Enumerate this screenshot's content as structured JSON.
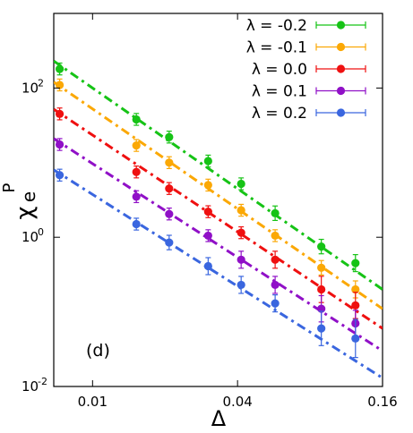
{
  "chart_data": {
    "type": "scatter",
    "annotation": "(d)",
    "xlabel": "Δ",
    "ylabel": {
      "base": "χ",
      "sub": "e",
      "sup": "P"
    },
    "xscale": "log",
    "yscale": "log",
    "xlim": [
      0.0069,
      0.16
    ],
    "ylim": [
      0.01,
      1000
    ],
    "xticks": [
      {
        "value": 0.01,
        "label": "0.01"
      },
      {
        "value": 0.04,
        "label": "0.04"
      },
      {
        "value": 0.16,
        "label": "0.16"
      }
    ],
    "yticks": [
      {
        "value": 0.01,
        "base": "10",
        "exp": "-2"
      },
      {
        "value": 1,
        "base": "10",
        "exp": "0"
      },
      {
        "value": 100,
        "base": "10",
        "exp": "2"
      }
    ],
    "legend_position": "top-right",
    "grid": false,
    "series": [
      {
        "name": "λ = -0.2",
        "color": "#16c316",
        "points": [
          [
            0.0073,
            180
          ],
          [
            0.0152,
            38
          ],
          [
            0.0208,
            22
          ],
          [
            0.0302,
            10.5
          ],
          [
            0.0414,
            5.2
          ],
          [
            0.0573,
            2.1
          ],
          [
            0.0891,
            0.75
          ],
          [
            0.1235,
            0.45
          ]
        ],
        "errors": [
          0.2,
          0.2,
          0.2,
          0.2,
          0.2,
          0.25,
          0.25,
          0.3
        ],
        "fit": [
          0.0069,
          230,
          0.16,
          0.2
        ]
      },
      {
        "name": "λ = -0.1",
        "color": "#fba805",
        "points": [
          [
            0.0073,
            110
          ],
          [
            0.0152,
            17
          ],
          [
            0.0208,
            10
          ],
          [
            0.0302,
            5.0
          ],
          [
            0.0414,
            2.3
          ],
          [
            0.0573,
            1.05
          ],
          [
            0.0891,
            0.39
          ],
          [
            0.1235,
            0.2
          ]
        ],
        "errors": [
          0.2,
          0.2,
          0.2,
          0.2,
          0.2,
          0.2,
          0.25,
          0.3
        ],
        "fit": [
          0.0069,
          120,
          0.16,
          0.11
        ]
      },
      {
        "name": "λ = 0.0",
        "color": "#ef1010",
        "points": [
          [
            0.0073,
            45
          ],
          [
            0.0152,
            7.5
          ],
          [
            0.0208,
            4.5
          ],
          [
            0.0302,
            2.2
          ],
          [
            0.0414,
            1.15
          ],
          [
            0.0573,
            0.5
          ],
          [
            0.0891,
            0.2
          ],
          [
            0.1235,
            0.122
          ]
        ],
        "errors": [
          0.2,
          0.2,
          0.2,
          0.2,
          0.2,
          0.3,
          0.5,
          0.5
        ],
        "fit": [
          0.0069,
          52,
          0.16,
          0.06
        ]
      },
      {
        "name": "λ = 0.1",
        "color": "#9010c7",
        "points": [
          [
            0.0073,
            17.5
          ],
          [
            0.0152,
            3.5
          ],
          [
            0.0208,
            2.05
          ],
          [
            0.0302,
            1.05
          ],
          [
            0.0414,
            0.5
          ],
          [
            0.0573,
            0.23
          ],
          [
            0.0891,
            0.11
          ],
          [
            0.1235,
            0.07
          ]
        ],
        "errors": [
          0.2,
          0.2,
          0.2,
          0.2,
          0.3,
          0.3,
          0.5,
          0.5
        ],
        "fit": [
          0.0069,
          21,
          0.16,
          0.03
        ]
      },
      {
        "name": "λ = 0.2",
        "color": "#3a66df",
        "points": [
          [
            0.0073,
            6.8
          ],
          [
            0.0152,
            1.5
          ],
          [
            0.0208,
            0.85
          ],
          [
            0.0302,
            0.41
          ],
          [
            0.0414,
            0.23
          ],
          [
            0.0573,
            0.13
          ],
          [
            0.0891,
            0.06
          ],
          [
            0.1235,
            0.044
          ]
        ],
        "errors": [
          0.2,
          0.2,
          0.25,
          0.3,
          0.3,
          0.3,
          0.7,
          0.8
        ],
        "fit": [
          0.0069,
          8,
          0.16,
          0.013
        ]
      }
    ]
  }
}
